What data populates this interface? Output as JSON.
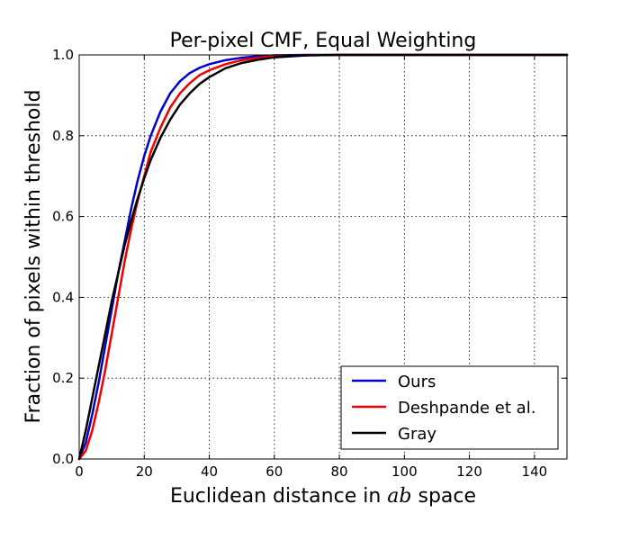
{
  "chart_data": {
    "type": "line",
    "title": "Per-pixel CMF, Equal Weighting",
    "xlabel_prefix": "Euclidean distance in ",
    "xlabel_math": "ab",
    "xlabel_suffix": " space",
    "ylabel": "Fraction of pixels within threshold",
    "xlim": [
      0,
      150
    ],
    "ylim": [
      0,
      1.0
    ],
    "xticks": [
      0,
      20,
      40,
      60,
      80,
      100,
      120,
      140
    ],
    "xtick_labels": [
      "0",
      "20",
      "40",
      "60",
      "80",
      "100",
      "120",
      "140"
    ],
    "yticks": [
      0.0,
      0.2,
      0.4,
      0.6,
      0.8,
      1.0
    ],
    "ytick_labels": [
      "0.0",
      "0.2",
      "0.4",
      "0.6",
      "0.8",
      "1.0"
    ],
    "grid": true,
    "legend_position": "lower-right",
    "series": [
      {
        "name": "Ours",
        "color": "#0000cc",
        "x": [
          0,
          2,
          4,
          6,
          8,
          10,
          12,
          14,
          16,
          18,
          20,
          22,
          25,
          28,
          31,
          34,
          37,
          40,
          45,
          50,
          55,
          60,
          70,
          80,
          100,
          150
        ],
        "y": [
          0.0,
          0.04,
          0.11,
          0.19,
          0.28,
          0.37,
          0.46,
          0.54,
          0.62,
          0.69,
          0.75,
          0.8,
          0.86,
          0.905,
          0.935,
          0.955,
          0.968,
          0.977,
          0.987,
          0.993,
          0.997,
          0.999,
          1.0,
          1.0,
          1.0,
          1.0
        ]
      },
      {
        "name": "Deshpande et al.",
        "color": "#ee0000",
        "x": [
          0,
          2,
          4,
          6,
          8,
          10,
          12,
          14,
          16,
          18,
          20,
          22,
          25,
          28,
          31,
          34,
          37,
          40,
          45,
          50,
          55,
          60,
          70,
          80,
          100,
          150
        ],
        "y": [
          0.0,
          0.02,
          0.07,
          0.14,
          0.22,
          0.31,
          0.4,
          0.49,
          0.57,
          0.64,
          0.7,
          0.76,
          0.82,
          0.87,
          0.905,
          0.93,
          0.95,
          0.962,
          0.977,
          0.987,
          0.993,
          0.997,
          0.999,
          1.0,
          1.0,
          1.0
        ]
      },
      {
        "name": "Gray",
        "color": "#000000",
        "x": [
          0,
          2,
          4,
          6,
          8,
          10,
          12,
          14,
          16,
          18,
          20,
          22,
          25,
          28,
          31,
          34,
          37,
          40,
          45,
          50,
          55,
          60,
          70,
          80,
          100,
          150
        ],
        "y": [
          0.0,
          0.07,
          0.15,
          0.23,
          0.31,
          0.39,
          0.46,
          0.53,
          0.59,
          0.645,
          0.695,
          0.74,
          0.795,
          0.84,
          0.877,
          0.905,
          0.928,
          0.945,
          0.967,
          0.98,
          0.988,
          0.994,
          0.999,
          1.0,
          1.0,
          1.0
        ]
      }
    ]
  }
}
